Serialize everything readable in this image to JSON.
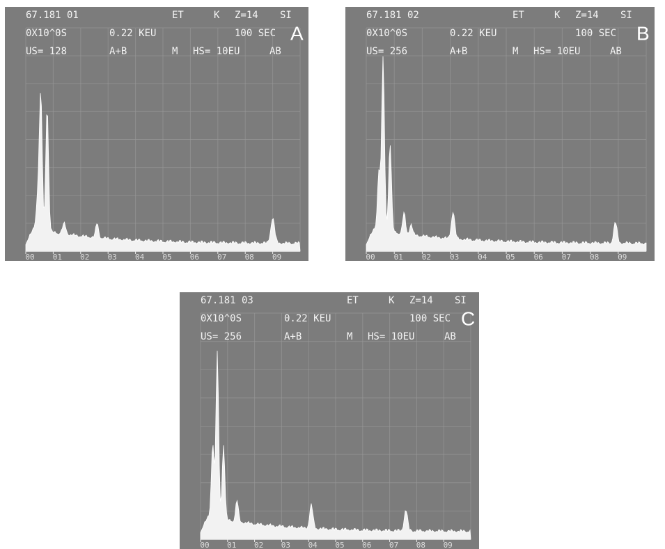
{
  "panels": [
    {
      "letter": "A",
      "rows": [
        [
          "67.181 01",
          "ET",
          "K",
          "Z=14",
          "SI"
        ],
        [
          "0X10^0S",
          "0.22 KEU",
          "100 SEC"
        ],
        [
          "US= 128",
          "A+B",
          "M",
          "HS= 10EU",
          "AB"
        ]
      ],
      "ticks": [
        "00",
        "01",
        "02",
        "03",
        "04",
        "05",
        "06",
        "07",
        "08",
        "09"
      ]
    },
    {
      "letter": "B",
      "rows": [
        [
          "67.181 02",
          "ET",
          "K",
          "Z=14",
          "SI"
        ],
        [
          "0X10^0S",
          "0.22 KEU",
          "100 SEC"
        ],
        [
          "US= 256",
          "A+B",
          "M",
          "HS= 10EU",
          "AB"
        ]
      ],
      "ticks": [
        "00",
        "01",
        "02",
        "03",
        "04",
        "05",
        "06",
        "07",
        "08",
        "09"
      ]
    },
    {
      "letter": "C",
      "rows": [
        [
          "67.181 03",
          "ET",
          "K",
          "Z=14",
          "SI"
        ],
        [
          "0X10^0S",
          "0.22 KEU",
          "100 SEC"
        ],
        [
          "US= 256",
          "A+B",
          "M",
          "HS= 10EU",
          "AB"
        ]
      ],
      "ticks": [
        "00",
        "01",
        "02",
        "03",
        "04",
        "05",
        "06",
        "07",
        "08",
        "09"
      ]
    }
  ]
}
